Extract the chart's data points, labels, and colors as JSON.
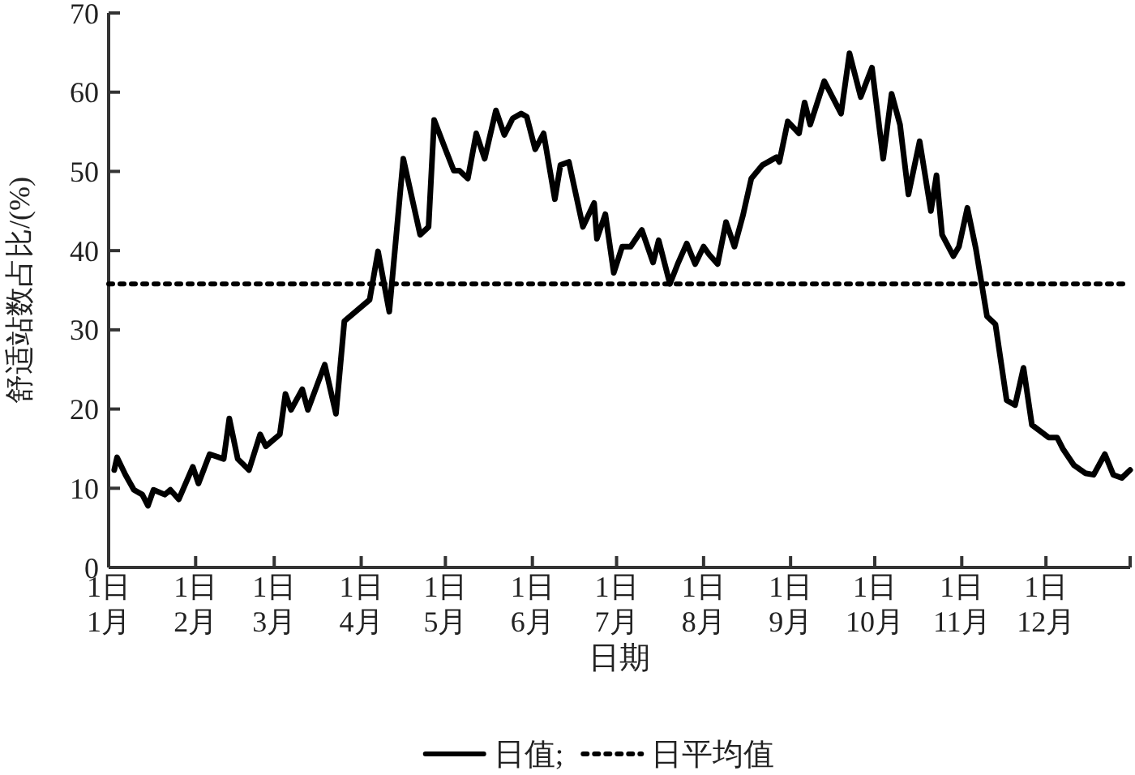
{
  "chart_data": {
    "type": "line",
    "xlabel": "日期",
    "ylabel": "舒适站数占比/(%)",
    "xlim": [
      "--01-01",
      "--12-31"
    ],
    "ylim": [
      0,
      70
    ],
    "yticks": [
      0,
      10,
      20,
      30,
      40,
      50,
      60,
      70
    ],
    "xticks": [
      {
        "value": "--01-01",
        "label": "1日\n1月"
      },
      {
        "value": "--02-01",
        "label": "1日\n2月"
      },
      {
        "value": "--03-01",
        "label": "1日\n3月"
      },
      {
        "value": "--04-01",
        "label": "1日\n4月"
      },
      {
        "value": "--05-01",
        "label": "1日\n5月"
      },
      {
        "value": "--06-01",
        "label": "1日\n6月"
      },
      {
        "value": "--07-01",
        "label": "1日\n7月"
      },
      {
        "value": "--08-01",
        "label": "1日\n8月"
      },
      {
        "value": "--09-01",
        "label": "1日\n9月"
      },
      {
        "value": "--10-01",
        "label": "1日\n10月"
      },
      {
        "value": "--11-01",
        "label": "1日\n11月"
      },
      {
        "value": "--12-01",
        "label": "1日\n12月"
      }
    ],
    "grid": false,
    "legend": "bottom",
    "line_style": "solid",
    "marker": "none",
    "ref_lines": [
      {
        "axis": "y",
        "value": 35.8,
        "label": "日平均值",
        "line_style": "dotted",
        "color": "#000000"
      }
    ],
    "series": [
      {
        "name": "日值;",
        "color": "#000000",
        "x": [
          "--01-03",
          "--01-04",
          "--01-07",
          "--01-10",
          "--01-13",
          "--01-15",
          "--01-17",
          "--01-21",
          "--01-23",
          "--01-26",
          "--01-31",
          "--02-02",
          "--02-06",
          "--02-11",
          "--02-13",
          "--02-16",
          "--02-20",
          "--02-24",
          "--02-26",
          "--03-03",
          "--03-05",
          "--03-07",
          "--03-11",
          "--03-13",
          "--03-19",
          "--03-23",
          "--03-26",
          "--04-04",
          "--04-07",
          "--04-11",
          "--04-16",
          "--04-22",
          "--04-25",
          "--04-27",
          "--05-01",
          "--05-04",
          "--05-06",
          "--05-09",
          "--05-12",
          "--05-15",
          "--05-19",
          "--05-22",
          "--05-25",
          "--05-28",
          "--05-30",
          "--06-02",
          "--06-05",
          "--06-09",
          "--06-11",
          "--06-14",
          "--06-19",
          "--06-23",
          "--06-24",
          "--06-27",
          "--06-30",
          "--07-03",
          "--07-06",
          "--07-10",
          "--07-14",
          "--07-16",
          "--07-20",
          "--07-23",
          "--07-26",
          "--07-29",
          "--08-01",
          "--08-03",
          "--08-06",
          "--08-09",
          "--08-12",
          "--08-15",
          "--08-18",
          "--08-22",
          "--08-27",
          "--08-28",
          "--08-31",
          "--09-04",
          "--09-06",
          "--09-08",
          "--09-13",
          "--09-19",
          "--09-22",
          "--09-26",
          "--09-30",
          "--10-04",
          "--10-07",
          "--10-10",
          "--10-13",
          "--10-17",
          "--10-21",
          "--10-23",
          "--10-25",
          "--10-29",
          "--10-31",
          "--11-03",
          "--11-06",
          "--11-10",
          "--11-13",
          "--11-17",
          "--11-20",
          "--11-23",
          "--11-26",
          "--12-02",
          "--12-05",
          "--12-07",
          "--12-11",
          "--12-15",
          "--12-18",
          "--12-22",
          "--12-25",
          "--12-28",
          "--12-31"
        ],
        "values": [
          12.3,
          13.9,
          11.7,
          9.8,
          9.2,
          7.8,
          9.8,
          9.2,
          9.8,
          8.6,
          12.7,
          10.6,
          14.3,
          13.7,
          18.8,
          13.7,
          12.3,
          16.8,
          15.3,
          16.8,
          21.9,
          19.9,
          22.5,
          19.9,
          25.6,
          19.4,
          31.1,
          33.8,
          39.9,
          32.3,
          51.6,
          42.0,
          43.0,
          56.5,
          52.8,
          50.1,
          50.1,
          49.1,
          54.8,
          51.6,
          57.7,
          54.6,
          56.7,
          57.3,
          56.9,
          52.8,
          54.8,
          46.5,
          50.8,
          51.2,
          43.0,
          46.0,
          41.5,
          44.6,
          37.2,
          40.5,
          40.5,
          42.6,
          38.5,
          41.3,
          35.8,
          38.5,
          40.9,
          38.3,
          40.5,
          39.5,
          38.3,
          43.6,
          40.5,
          44.4,
          49.1,
          50.8,
          51.8,
          51.2,
          56.3,
          54.8,
          58.7,
          55.9,
          61.4,
          57.3,
          64.9,
          59.4,
          63.1,
          51.6,
          59.8,
          55.9,
          47.1,
          53.8,
          45.0,
          49.5,
          42.0,
          39.3,
          40.5,
          45.4,
          40.3,
          31.7,
          30.7,
          21.1,
          20.5,
          25.2,
          18.0,
          16.4,
          16.4,
          15.0,
          12.9,
          11.9,
          11.7,
          14.3,
          11.7,
          11.3,
          12.3
        ]
      }
    ]
  }
}
